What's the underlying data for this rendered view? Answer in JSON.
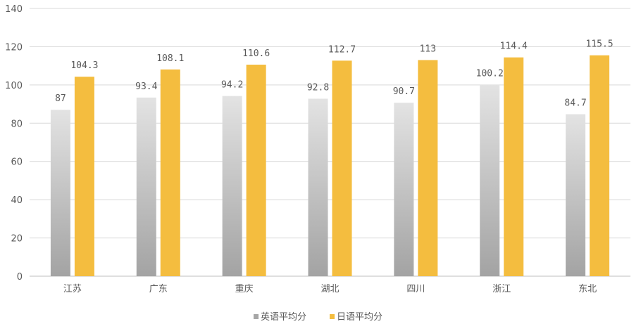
{
  "chart_data": {
    "type": "bar",
    "categories": [
      "江苏",
      "广东",
      "重庆",
      "湖北",
      "四川",
      "浙江",
      "东北"
    ],
    "series": [
      {
        "name": "英语平均分",
        "values": [
          87,
          93.4,
          94.2,
          92.8,
          90.7,
          100.2,
          84.7
        ],
        "color_top": "#e3e3e3",
        "color_bottom": "#a3a3a3",
        "labels": [
          "87",
          "93.4",
          "94.2",
          "92.8",
          "90.7",
          "100.2",
          "84.7"
        ]
      },
      {
        "name": "日语平均分",
        "values": [
          104.3,
          108.1,
          110.6,
          112.7,
          113,
          114.4,
          115.5
        ],
        "color": "#f4bd3f",
        "labels": [
          "104.3",
          "108.1",
          "110.6",
          "112.7",
          "113",
          "114.4",
          "115.5"
        ]
      }
    ],
    "yticks": [
      "0",
      "20",
      "40",
      "60",
      "80",
      "100",
      "120",
      "140"
    ],
    "ylim": [
      0,
      140
    ],
    "grid": true,
    "legend_position": "bottom"
  }
}
